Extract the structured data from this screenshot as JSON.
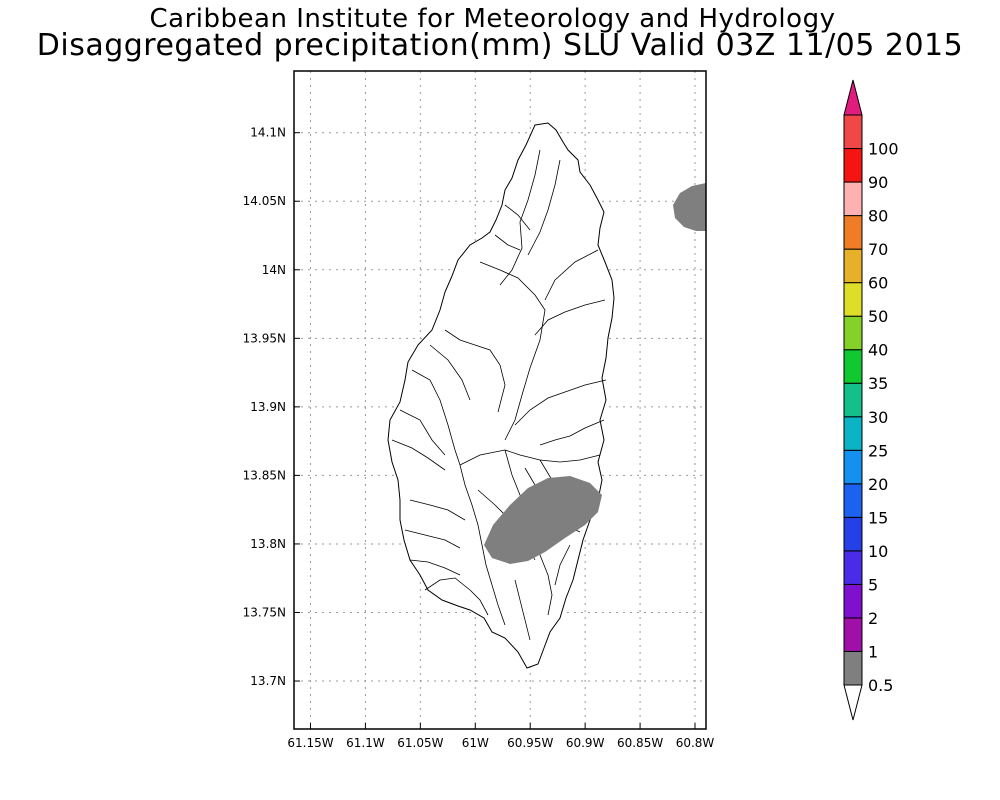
{
  "title": {
    "line1": "Caribbean Institute for Meteorology and Hydrology",
    "line2": "Disaggregated precipitation(mm) SLU Valid 03Z 11/05 2015"
  },
  "map": {
    "lon_range": [
      -61.165,
      -60.79
    ],
    "lat_range": [
      13.665,
      14.145
    ],
    "lat_ticks": [
      {
        "value": 14.1,
        "label": "14.1N"
      },
      {
        "value": 14.05,
        "label": "14.05N"
      },
      {
        "value": 14.0,
        "label": "14N"
      },
      {
        "value": 13.95,
        "label": "13.95N"
      },
      {
        "value": 13.9,
        "label": "13.9N"
      },
      {
        "value": 13.85,
        "label": "13.85N"
      },
      {
        "value": 13.8,
        "label": "13.8N"
      },
      {
        "value": 13.75,
        "label": "13.75N"
      },
      {
        "value": 13.7,
        "label": "13.7N"
      }
    ],
    "lon_ticks": [
      {
        "value": -61.15,
        "label": "61.15W"
      },
      {
        "value": -61.1,
        "label": "61.1W"
      },
      {
        "value": -61.05,
        "label": "61.05W"
      },
      {
        "value": -61.0,
        "label": "61W"
      },
      {
        "value": -60.95,
        "label": "60.95W"
      },
      {
        "value": -60.9,
        "label": "60.9W"
      },
      {
        "value": -60.85,
        "label": "60.85W"
      },
      {
        "value": -60.8,
        "label": "60.8W"
      }
    ],
    "grid": true,
    "precip_areas": [
      {
        "name": "south-east band",
        "class": "0.5-1",
        "color": "#7f7f7f"
      },
      {
        "name": "north-east edge",
        "class": "0.5-1",
        "color": "#7f7f7f"
      }
    ]
  },
  "colorbar": {
    "labels": [
      "0.5",
      "1",
      "2",
      "5",
      "10",
      "15",
      "20",
      "25",
      "30",
      "35",
      "40",
      "50",
      "60",
      "70",
      "80",
      "90",
      "100"
    ],
    "colors": [
      "#7f7f7f",
      "#a010a8",
      "#8010d0",
      "#4a2ce8",
      "#2640e8",
      "#1c62f0",
      "#1490f0",
      "#0ab4c4",
      "#14c08a",
      "#10c830",
      "#84d228",
      "#dede28",
      "#e6b028",
      "#f07c28",
      "#ffb0b0",
      "#f41414",
      "#f04848"
    ],
    "under_color": "#ffffff",
    "over_color": "#e01c7c"
  }
}
